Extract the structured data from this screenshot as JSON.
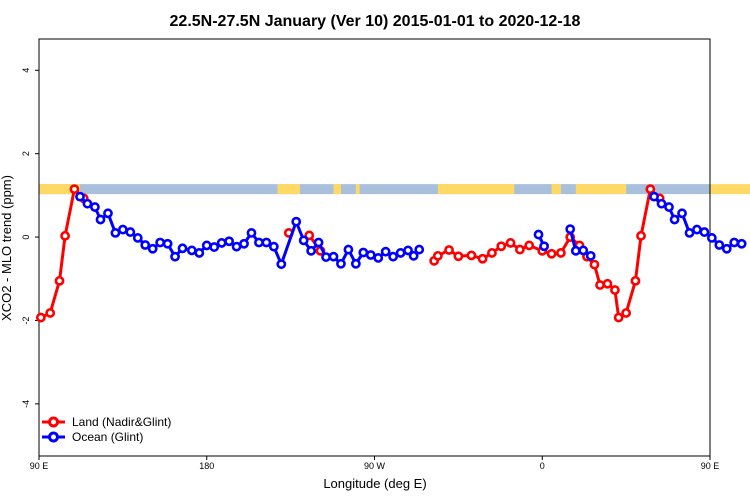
{
  "chart_data": {
    "type": "line",
    "title": "22.5N-27.5N January (Ver 10)   2015-01-01 to 2020-12-18",
    "xlabel": "Longitude (deg E)",
    "ylabel": "XCO2 - MLO trend (ppm)",
    "xlim": [
      90,
      450
    ],
    "ylim": [
      -5.25,
      4.75
    ],
    "x_ticks": [
      {
        "value": 90,
        "label": "90 E"
      },
      {
        "value": 180,
        "label": "180"
      },
      {
        "value": 270,
        "label": "90 W"
      },
      {
        "value": 360,
        "label": "0"
      },
      {
        "value": 450,
        "label": "90 E"
      },
      {
        "value": 540,
        "label": "180"
      }
    ],
    "y_ticks": [
      {
        "value": -4,
        "label": "-4"
      },
      {
        "value": -2,
        "label": "-2"
      },
      {
        "value": 0,
        "label": "0"
      },
      {
        "value": 2,
        "label": "2"
      },
      {
        "value": 4,
        "label": "4"
      }
    ],
    "landmask": {
      "y_range": [
        1.03,
        1.27
      ],
      "land_color": "#FFD966",
      "ocean_color": "#A8C0DC",
      "land_spans": [
        [
          90,
          112
        ],
        [
          218,
          230
        ],
        [
          248,
          252
        ],
        [
          260,
          262
        ],
        [
          304,
          345
        ],
        [
          365,
          370
        ],
        [
          378,
          405
        ],
        [
          450,
          472
        ]
      ]
    },
    "series": [
      {
        "name": "Land (Nadir&Glint)",
        "color": "#FF0000",
        "points": [
          [
            91,
            -1.93
          ],
          [
            96,
            -1.82
          ],
          [
            101,
            -1.05
          ],
          [
            104,
            0.03
          ],
          [
            109,
            1.15
          ],
          [
            114,
            0.93
          ],
          [
            224,
            0.1
          ],
          [
            235,
            0.04
          ],
          [
            241,
            -0.33
          ],
          [
            302,
            -0.57
          ],
          [
            304,
            -0.45
          ],
          [
            310,
            -0.31
          ],
          [
            315,
            -0.46
          ],
          [
            322,
            -0.44
          ],
          [
            328,
            -0.52
          ],
          [
            333,
            -0.38
          ],
          [
            338,
            -0.22
          ],
          [
            343,
            -0.14
          ],
          [
            348,
            -0.3
          ],
          [
            353,
            -0.2
          ],
          [
            360,
            -0.33
          ],
          [
            365,
            -0.4
          ],
          [
            370,
            -0.38
          ],
          [
            375,
            0.0
          ],
          [
            380,
            -0.2
          ],
          [
            384,
            -0.47
          ],
          [
            388,
            -0.66
          ],
          [
            391,
            -1.15
          ],
          [
            395,
            -1.12
          ],
          [
            399,
            -1.27
          ],
          [
            401,
            -1.93
          ],
          [
            405,
            -1.82
          ],
          [
            410,
            -1.05
          ],
          [
            413,
            0.03
          ],
          [
            418,
            1.15
          ],
          [
            423,
            0.93
          ]
        ]
      },
      {
        "name": "Ocean (Glint)",
        "color": "#0000FF",
        "points": [
          [
            112,
            0.97
          ],
          [
            116,
            0.8
          ],
          [
            120,
            0.72
          ],
          [
            123,
            0.42
          ],
          [
            127,
            0.57
          ],
          [
            131,
            0.1
          ],
          [
            135,
            0.18
          ],
          [
            139,
            0.12
          ],
          [
            143,
            -0.02
          ],
          [
            147,
            -0.19
          ],
          [
            151,
            -0.28
          ],
          [
            155,
            -0.13
          ],
          [
            159,
            -0.16
          ],
          [
            163,
            -0.47
          ],
          [
            167,
            -0.27
          ],
          [
            172,
            -0.32
          ],
          [
            176,
            -0.38
          ],
          [
            180,
            -0.2
          ],
          [
            184,
            -0.24
          ],
          [
            188,
            -0.14
          ],
          [
            192,
            -0.1
          ],
          [
            196,
            -0.23
          ],
          [
            200,
            -0.16
          ],
          [
            204,
            0.1
          ],
          [
            208,
            -0.13
          ],
          [
            212,
            -0.13
          ],
          [
            216,
            -0.23
          ],
          [
            220,
            -0.65
          ],
          [
            228,
            0.37
          ],
          [
            232,
            -0.08
          ],
          [
            236,
            -0.33
          ],
          [
            240,
            -0.13
          ],
          [
            244,
            -0.48
          ],
          [
            248,
            -0.47
          ],
          [
            252,
            -0.64
          ],
          [
            256,
            -0.3
          ],
          [
            260,
            -0.64
          ],
          [
            264,
            -0.37
          ],
          [
            268,
            -0.43
          ],
          [
            272,
            -0.5
          ],
          [
            276,
            -0.35
          ],
          [
            280,
            -0.47
          ],
          [
            284,
            -0.38
          ],
          [
            288,
            -0.32
          ],
          [
            291,
            -0.45
          ],
          [
            294,
            -0.3
          ],
          [
            358,
            0.06
          ],
          [
            361,
            -0.22
          ],
          [
            375,
            0.19
          ],
          [
            378,
            -0.33
          ],
          [
            382,
            -0.32
          ],
          [
            386,
            -0.45
          ],
          [
            420,
            0.97
          ],
          [
            424,
            0.8
          ],
          [
            428,
            0.72
          ],
          [
            431,
            0.42
          ],
          [
            435,
            0.57
          ],
          [
            439,
            0.1
          ],
          [
            443,
            0.18
          ],
          [
            447,
            0.12
          ],
          [
            451,
            -0.02
          ],
          [
            455,
            -0.19
          ],
          [
            459,
            -0.28
          ],
          [
            463,
            -0.13
          ],
          [
            467,
            -0.16
          ]
        ]
      }
    ],
    "legend": {
      "position": "bottom-left"
    },
    "grid": false
  }
}
